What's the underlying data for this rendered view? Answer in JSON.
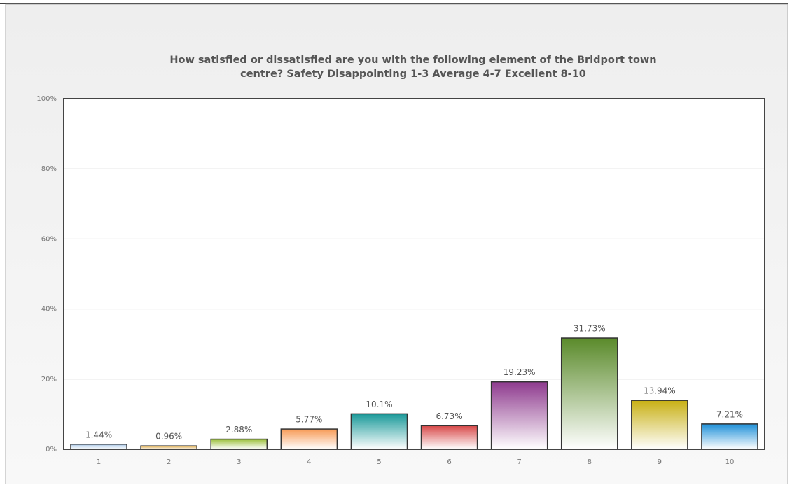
{
  "chart_data": {
    "type": "bar",
    "title": [
      "How satisfied or dissatisfied are you with the following element of the Bridport town",
      "centre? Safety Disappointing 1-3 Average 4-7 Excellent 8-10"
    ],
    "categories": [
      "1",
      "2",
      "3",
      "4",
      "5",
      "6",
      "7",
      "8",
      "9",
      "10"
    ],
    "values": [
      1.44,
      0.96,
      2.88,
      5.77,
      10.1,
      6.73,
      19.23,
      31.73,
      13.94,
      7.21
    ],
    "value_labels": [
      "1.44%",
      "0.96%",
      "2.88%",
      "5.77%",
      "10.1%",
      "6.73%",
      "19.23%",
      "31.73%",
      "13.94%",
      "7.21%"
    ],
    "colors": [
      "#a9c8e8",
      "#d9a441",
      "#9cc13c",
      "#f79a55",
      "#1a9a9a",
      "#d84848",
      "#8e3a8e",
      "#5a8a2a",
      "#c8b014",
      "#1e90d8"
    ],
    "ylim": [
      0,
      100
    ],
    "yticks": [
      {
        "value": 0,
        "label": "0%"
      },
      {
        "value": 20,
        "label": "20%"
      },
      {
        "value": 40,
        "label": "40%"
      },
      {
        "value": 60,
        "label": "60%"
      },
      {
        "value": 80,
        "label": "80%"
      },
      {
        "value": 100,
        "label": "100%"
      }
    ],
    "grid": true
  }
}
